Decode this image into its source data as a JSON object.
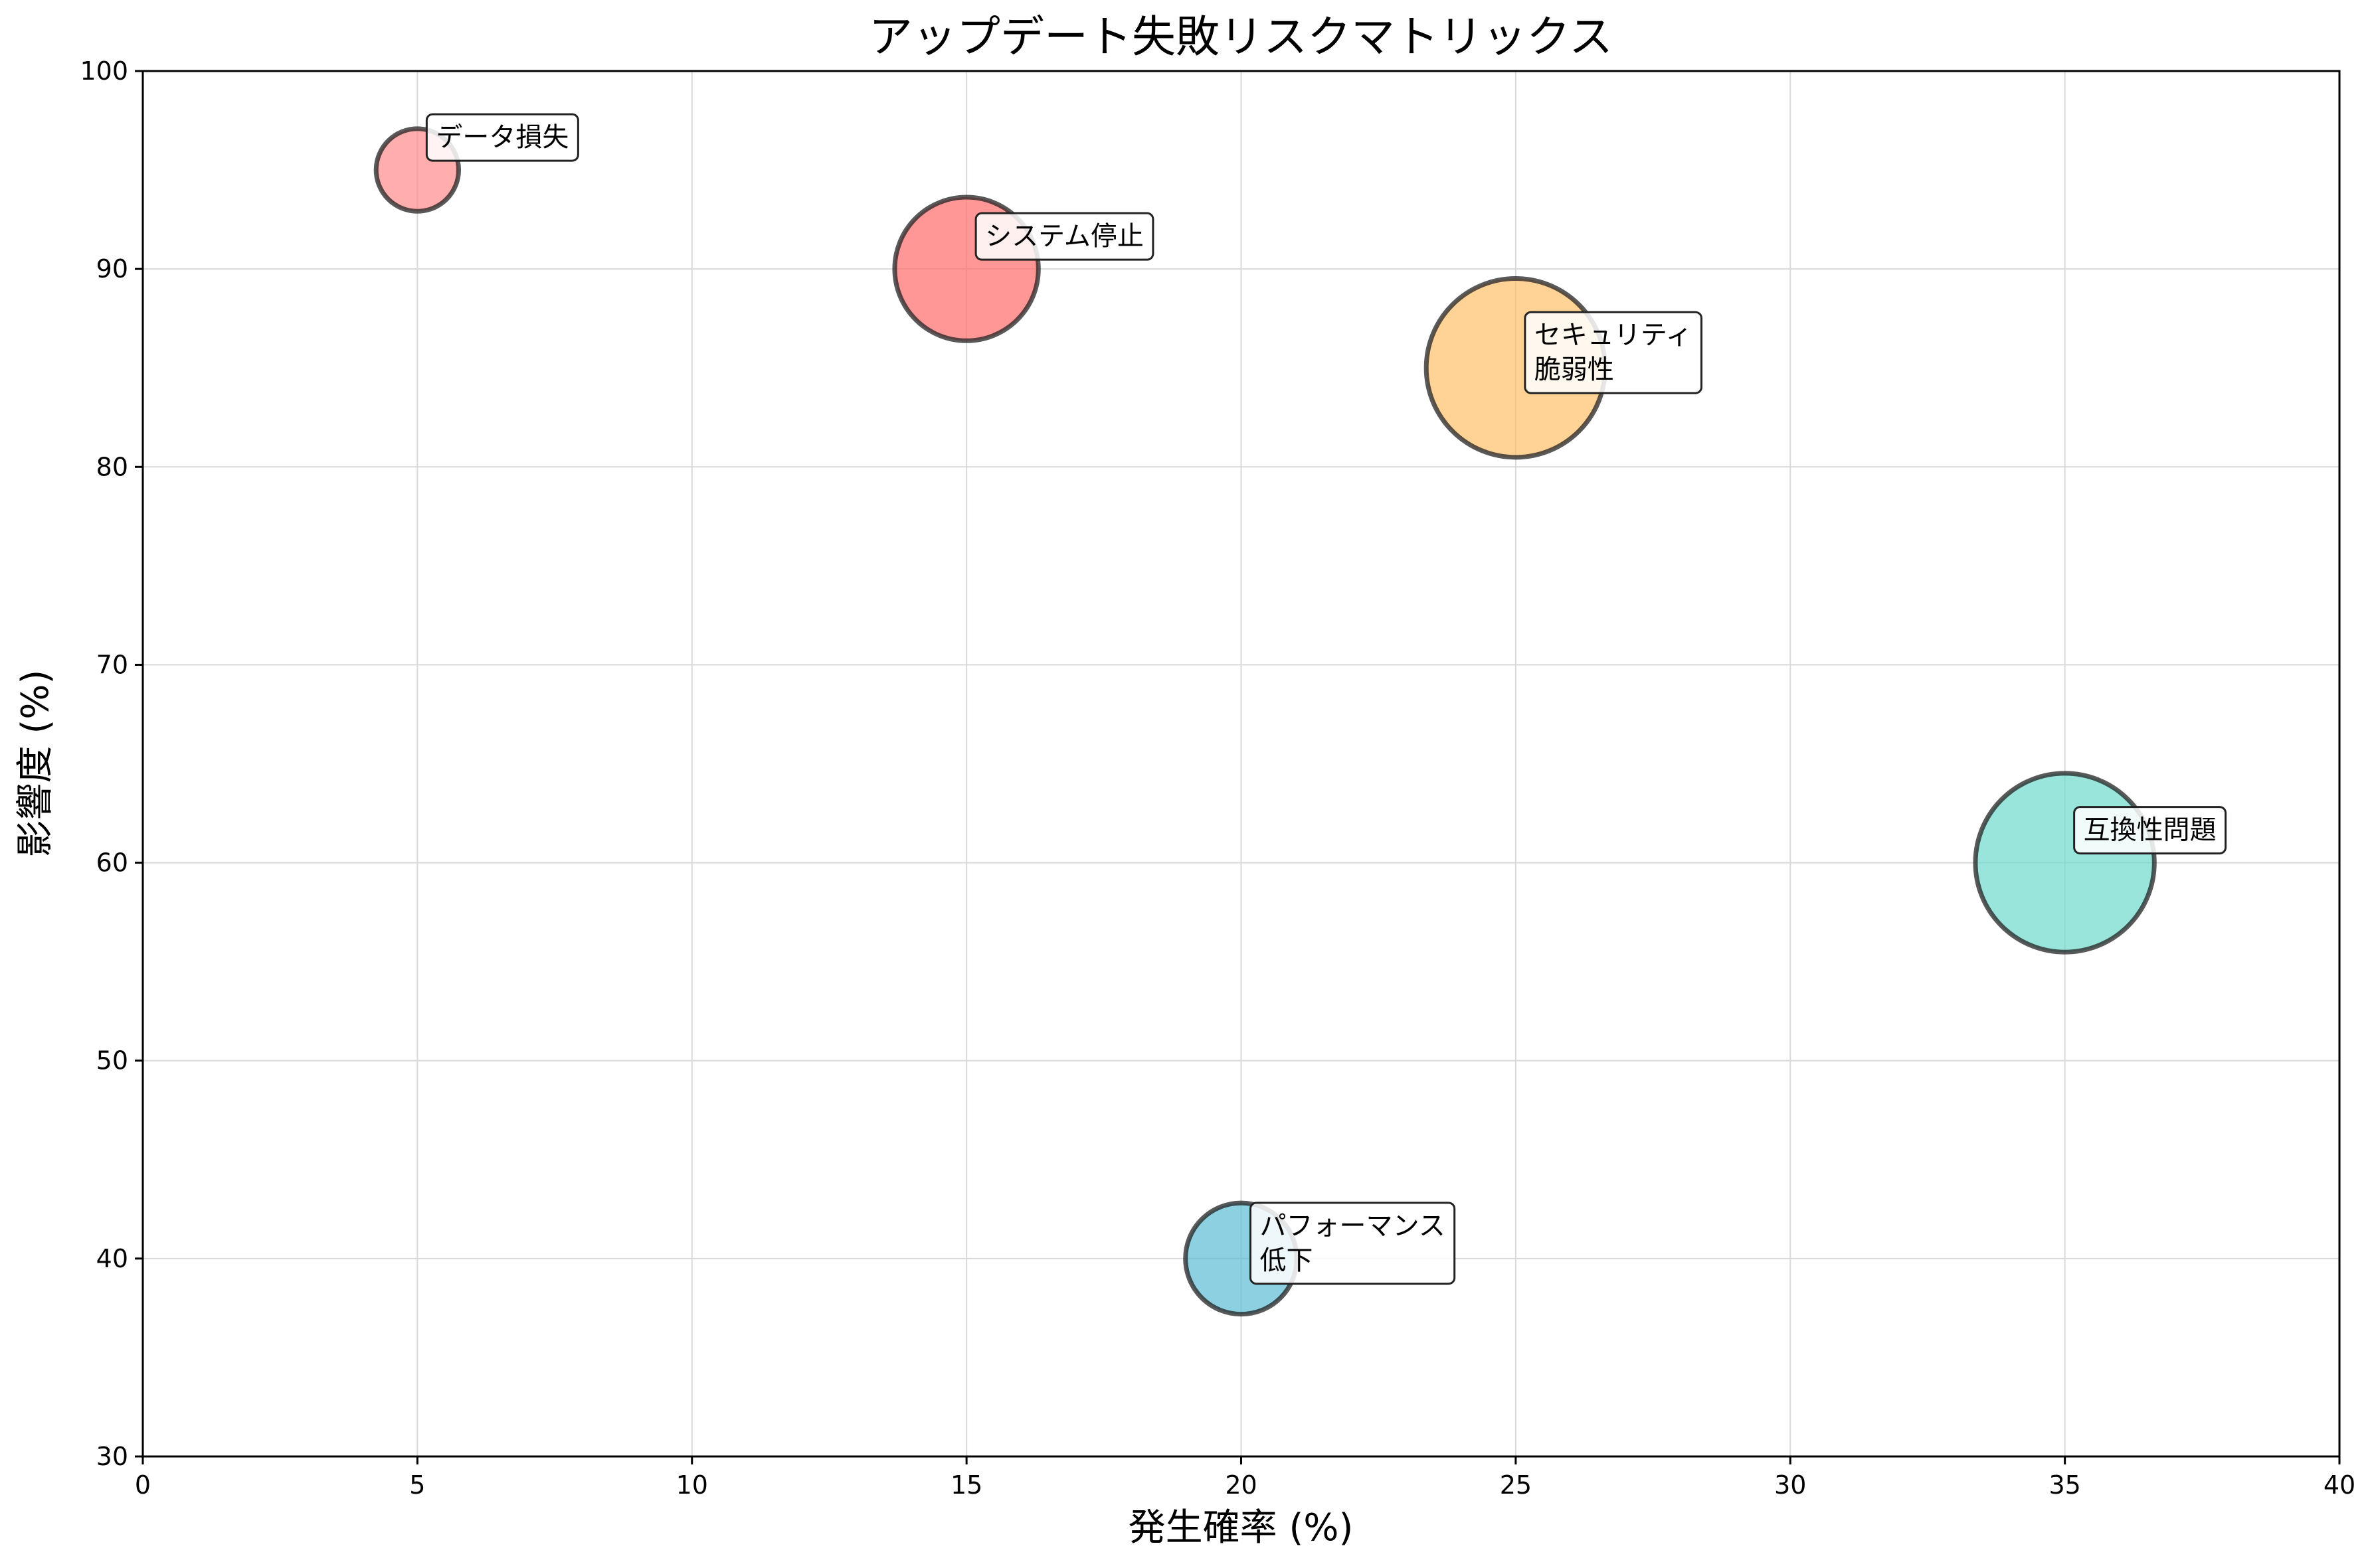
{
  "chart_data": {
    "type": "scatter",
    "title": "アップデート失敗リスクマトリックス",
    "xlabel": "発生確率 (%)",
    "ylabel": "影響度 (%)",
    "xlim": [
      0,
      40
    ],
    "ylim": [
      30,
      100
    ],
    "xticks": [
      0,
      5,
      10,
      15,
      20,
      25,
      30,
      35,
      40
    ],
    "yticks": [
      30,
      40,
      50,
      60,
      70,
      80,
      90,
      100
    ],
    "grid": true,
    "points": [
      {
        "label": "システム停止",
        "lines": [
          "システム停止"
        ],
        "x": 15,
        "y": 90,
        "size": 1.0,
        "color": "#ff6b6b"
      },
      {
        "label": "データ損失",
        "lines": [
          "データ損失"
        ],
        "x": 5,
        "y": 95,
        "size": 0.33,
        "color": "#ff8a8a"
      },
      {
        "label": "パフォーマンス低下",
        "lines": [
          "パフォーマンス",
          "低下"
        ],
        "x": 20,
        "y": 40,
        "size": 0.6,
        "color": "#5bbcd6"
      },
      {
        "label": "互換性問題",
        "lines": [
          "互換性問題"
        ],
        "x": 35,
        "y": 60,
        "size": 1.55,
        "color": "#6dd8cc"
      },
      {
        "label": "セキュリティ脆弱性",
        "lines": [
          "セキュリティ",
          "脆弱性"
        ],
        "x": 25,
        "y": 85,
        "size": 1.55,
        "color": "#ffbf69"
      }
    ]
  }
}
